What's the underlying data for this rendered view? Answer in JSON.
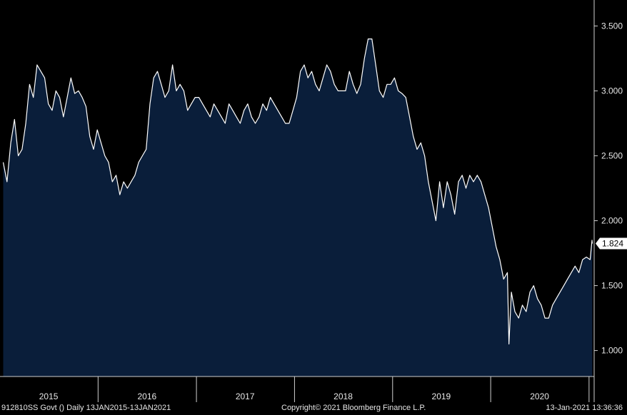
{
  "chart_data": {
    "type": "area",
    "ylim": [
      0.8,
      3.7
    ],
    "grid": false,
    "colors": {
      "background": "#000000",
      "fill": "#0a1e3a",
      "line": "#ffffff",
      "last_price_bg": "#ffffff",
      "last_price_text": "#000000"
    },
    "y_ticks": [
      "1.000",
      "1.500",
      "2.000",
      "2.500",
      "3.000",
      "3.500"
    ],
    "x_tick_labels": [
      "2015",
      "2016",
      "2017",
      "2018",
      "2019",
      "2020"
    ],
    "last_value_label": "1.824",
    "series": [
      {
        "x": [
          "2015-01-13",
          "2015-01-27",
          "2015-02-10",
          "2015-02-24",
          "2015-03-10",
          "2015-03-24",
          "2015-04-07",
          "2015-04-21",
          "2015-05-05",
          "2015-05-19",
          "2015-06-02",
          "2015-06-16",
          "2015-06-30",
          "2015-07-14",
          "2015-07-28",
          "2015-08-11",
          "2015-08-25",
          "2015-09-08",
          "2015-09-22",
          "2015-10-06",
          "2015-10-20",
          "2015-11-03",
          "2015-11-17",
          "2015-12-01",
          "2015-12-15",
          "2015-12-29",
          "2016-01-12",
          "2016-01-26",
          "2016-02-09",
          "2016-02-23",
          "2016-03-08",
          "2016-03-22",
          "2016-04-05",
          "2016-04-19",
          "2016-05-03",
          "2016-05-17",
          "2016-05-31",
          "2016-06-14",
          "2016-06-28",
          "2016-07-12",
          "2016-07-26",
          "2016-08-09",
          "2016-08-23",
          "2016-09-06",
          "2016-09-20",
          "2016-10-04",
          "2016-10-18",
          "2016-11-01",
          "2016-11-15",
          "2016-11-29",
          "2016-12-13",
          "2016-12-27",
          "2017-01-10",
          "2017-01-24",
          "2017-02-07",
          "2017-02-21",
          "2017-03-07",
          "2017-03-21",
          "2017-04-04",
          "2017-04-18",
          "2017-05-02",
          "2017-05-16",
          "2017-05-30",
          "2017-06-13",
          "2017-06-27",
          "2017-07-11",
          "2017-07-25",
          "2017-08-08",
          "2017-08-22",
          "2017-09-05",
          "2017-09-19",
          "2017-10-03",
          "2017-10-17",
          "2017-10-31",
          "2017-11-14",
          "2017-11-28",
          "2017-12-12",
          "2017-12-26",
          "2018-01-09",
          "2018-01-23",
          "2018-02-06",
          "2018-02-20",
          "2018-03-06",
          "2018-03-20",
          "2018-04-03",
          "2018-04-17",
          "2018-05-01",
          "2018-05-15",
          "2018-05-29",
          "2018-06-12",
          "2018-06-26",
          "2018-07-10",
          "2018-07-24",
          "2018-08-07",
          "2018-08-21",
          "2018-09-04",
          "2018-09-18",
          "2018-10-02",
          "2018-10-16",
          "2018-10-30",
          "2018-11-13",
          "2018-11-27",
          "2018-12-11",
          "2018-12-25",
          "2019-01-08",
          "2019-01-22",
          "2019-02-05",
          "2019-02-19",
          "2019-03-05",
          "2019-03-19",
          "2019-04-02",
          "2019-04-16",
          "2019-04-30",
          "2019-05-14",
          "2019-05-28",
          "2019-06-11",
          "2019-06-25",
          "2019-07-09",
          "2019-07-23",
          "2019-08-06",
          "2019-08-20",
          "2019-09-03",
          "2019-09-17",
          "2019-10-01",
          "2019-10-15",
          "2019-10-29",
          "2019-11-12",
          "2019-11-26",
          "2019-12-10",
          "2019-12-24",
          "2020-01-07",
          "2020-01-21",
          "2020-02-04",
          "2020-02-18",
          "2020-03-03",
          "2020-03-09",
          "2020-03-18",
          "2020-03-31",
          "2020-04-14",
          "2020-04-28",
          "2020-05-12",
          "2020-05-26",
          "2020-06-09",
          "2020-06-23",
          "2020-07-07",
          "2020-07-21",
          "2020-08-04",
          "2020-08-18",
          "2020-09-01",
          "2020-09-15",
          "2020-09-29",
          "2020-10-13",
          "2020-10-27",
          "2020-11-10",
          "2020-11-24",
          "2020-12-08",
          "2020-12-22",
          "2021-01-05",
          "2021-01-12",
          "2021-01-13"
        ],
        "y": [
          2.45,
          2.3,
          2.6,
          2.78,
          2.5,
          2.55,
          2.75,
          3.05,
          2.95,
          3.2,
          3.15,
          3.1,
          2.9,
          2.85,
          3.0,
          2.95,
          2.8,
          2.95,
          3.1,
          2.98,
          3.0,
          2.95,
          2.88,
          2.65,
          2.55,
          2.7,
          2.6,
          2.5,
          2.45,
          2.3,
          2.35,
          2.2,
          2.3,
          2.25,
          2.3,
          2.35,
          2.45,
          2.5,
          2.55,
          2.9,
          3.1,
          3.15,
          3.05,
          2.95,
          3.0,
          3.2,
          3.0,
          3.05,
          3.0,
          2.85,
          2.9,
          2.95,
          2.95,
          2.9,
          2.85,
          2.8,
          2.9,
          2.85,
          2.8,
          2.75,
          2.9,
          2.85,
          2.8,
          2.75,
          2.85,
          2.9,
          2.8,
          2.75,
          2.8,
          2.9,
          2.85,
          2.95,
          2.9,
          2.85,
          2.8,
          2.75,
          2.75,
          2.85,
          2.95,
          3.15,
          3.2,
          3.1,
          3.15,
          3.05,
          3.0,
          3.1,
          3.2,
          3.15,
          3.05,
          3.0,
          3.0,
          3.0,
          3.15,
          3.05,
          2.98,
          3.05,
          3.25,
          3.4,
          3.4,
          3.2,
          3.0,
          2.95,
          3.05,
          3.05,
          3.1,
          3.0,
          2.98,
          2.95,
          2.8,
          2.65,
          2.55,
          2.6,
          2.5,
          2.3,
          2.15,
          2.0,
          2.3,
          2.1,
          2.3,
          2.2,
          2.05,
          2.3,
          2.35,
          2.25,
          2.35,
          2.3,
          2.35,
          2.3,
          2.2,
          2.1,
          1.95,
          1.8,
          1.7,
          1.55,
          1.6,
          1.05,
          1.45,
          1.3,
          1.25,
          1.35,
          1.3,
          1.45,
          1.5,
          1.4,
          1.35,
          1.25,
          1.25,
          1.35,
          1.4,
          1.45,
          1.5,
          1.55,
          1.6,
          1.65,
          1.6,
          1.7,
          1.72,
          1.7,
          1.85,
          1.824
        ]
      }
    ]
  },
  "footer": {
    "left": "912810SS Govt ()  Daily 13JAN2015-13JAN2021",
    "center": "Copyright© 2021 Bloomberg Finance L.P.",
    "right": "13-Jan-2021 13:36:36"
  }
}
